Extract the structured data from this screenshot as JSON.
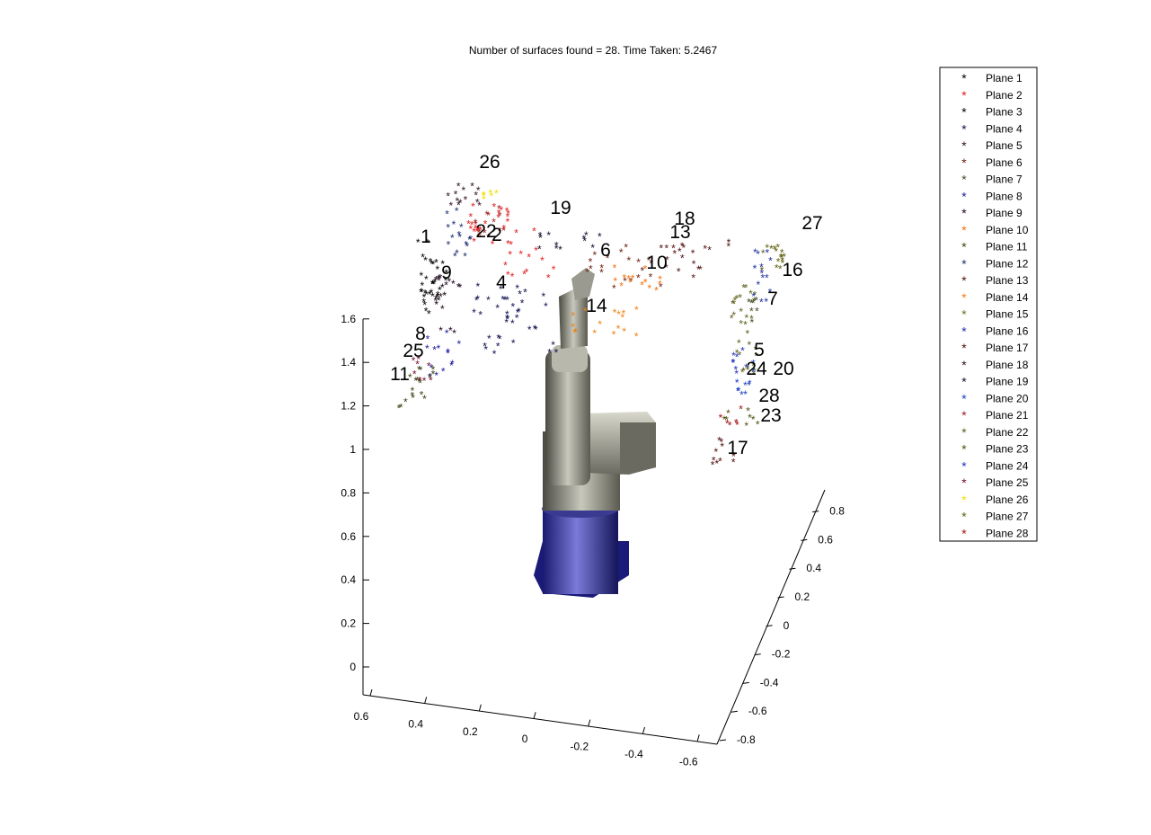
{
  "chart_data": {
    "type": "scatter",
    "projection": "3d",
    "title": "Number of surfaces found = 28. Time Taken: 5.2467",
    "axes": {
      "z": {
        "ticks": [
          "0",
          "0.2",
          "0.4",
          "0.6",
          "0.8",
          "1",
          "1.2",
          "1.4",
          "1.6"
        ]
      },
      "x": {
        "ticks": [
          "0.6",
          "0.4",
          "0.2",
          "0",
          "-0.2",
          "-0.4",
          "-0.6"
        ]
      },
      "y": {
        "ticks": [
          "-0.8",
          "-0.6",
          "-0.4",
          "-0.2",
          "0",
          "0.2",
          "0.4",
          "0.6",
          "0.8"
        ]
      }
    },
    "legend": {
      "placement": "right",
      "entries": [
        {
          "name": "Plane 1",
          "color": "#000000"
        },
        {
          "name": "Plane 2",
          "color": "#e02020"
        },
        {
          "name": "Plane 3",
          "color": "#000000"
        },
        {
          "name": "Plane 4",
          "color": "#101050"
        },
        {
          "name": "Plane 5",
          "color": "#301020"
        },
        {
          "name": "Plane 6",
          "color": "#702010"
        },
        {
          "name": "Plane 7",
          "color": "#405020"
        },
        {
          "name": "Plane 8",
          "color": "#2020a0"
        },
        {
          "name": "Plane 9",
          "color": "#200020"
        },
        {
          "name": "Plane 10",
          "color": "#f07010"
        },
        {
          "name": "Plane 11",
          "color": "#404010"
        },
        {
          "name": "Plane 12",
          "color": "#203070"
        },
        {
          "name": "Plane 13",
          "color": "#501010"
        },
        {
          "name": "Plane 14",
          "color": "#f08010"
        },
        {
          "name": "Plane 15",
          "color": "#707020"
        },
        {
          "name": "Plane 16",
          "color": "#2030a0"
        },
        {
          "name": "Plane 17",
          "color": "#500a0a"
        },
        {
          "name": "Plane 18",
          "color": "#301020"
        },
        {
          "name": "Plane 19",
          "color": "#101030"
        },
        {
          "name": "Plane 20",
          "color": "#2040c0"
        },
        {
          "name": "Plane 21",
          "color": "#a02020"
        },
        {
          "name": "Plane 22",
          "color": "#606020"
        },
        {
          "name": "Plane 23",
          "color": "#505010"
        },
        {
          "name": "Plane 24",
          "color": "#2030c0"
        },
        {
          "name": "Plane 25",
          "color": "#701030"
        },
        {
          "name": "Plane 26",
          "color": "#f0e000"
        },
        {
          "name": "Plane 27",
          "color": "#606010"
        },
        {
          "name": "Plane 28",
          "color": "#a01010"
        }
      ]
    },
    "plane_labels": [
      "26",
      "19",
      "18",
      "13",
      "27",
      "1",
      "22",
      "2",
      "6",
      "10",
      "9",
      "16",
      "4",
      "7",
      "14",
      "8",
      "25",
      "5",
      "11",
      "24",
      "20",
      "28",
      "23",
      "17"
    ]
  }
}
